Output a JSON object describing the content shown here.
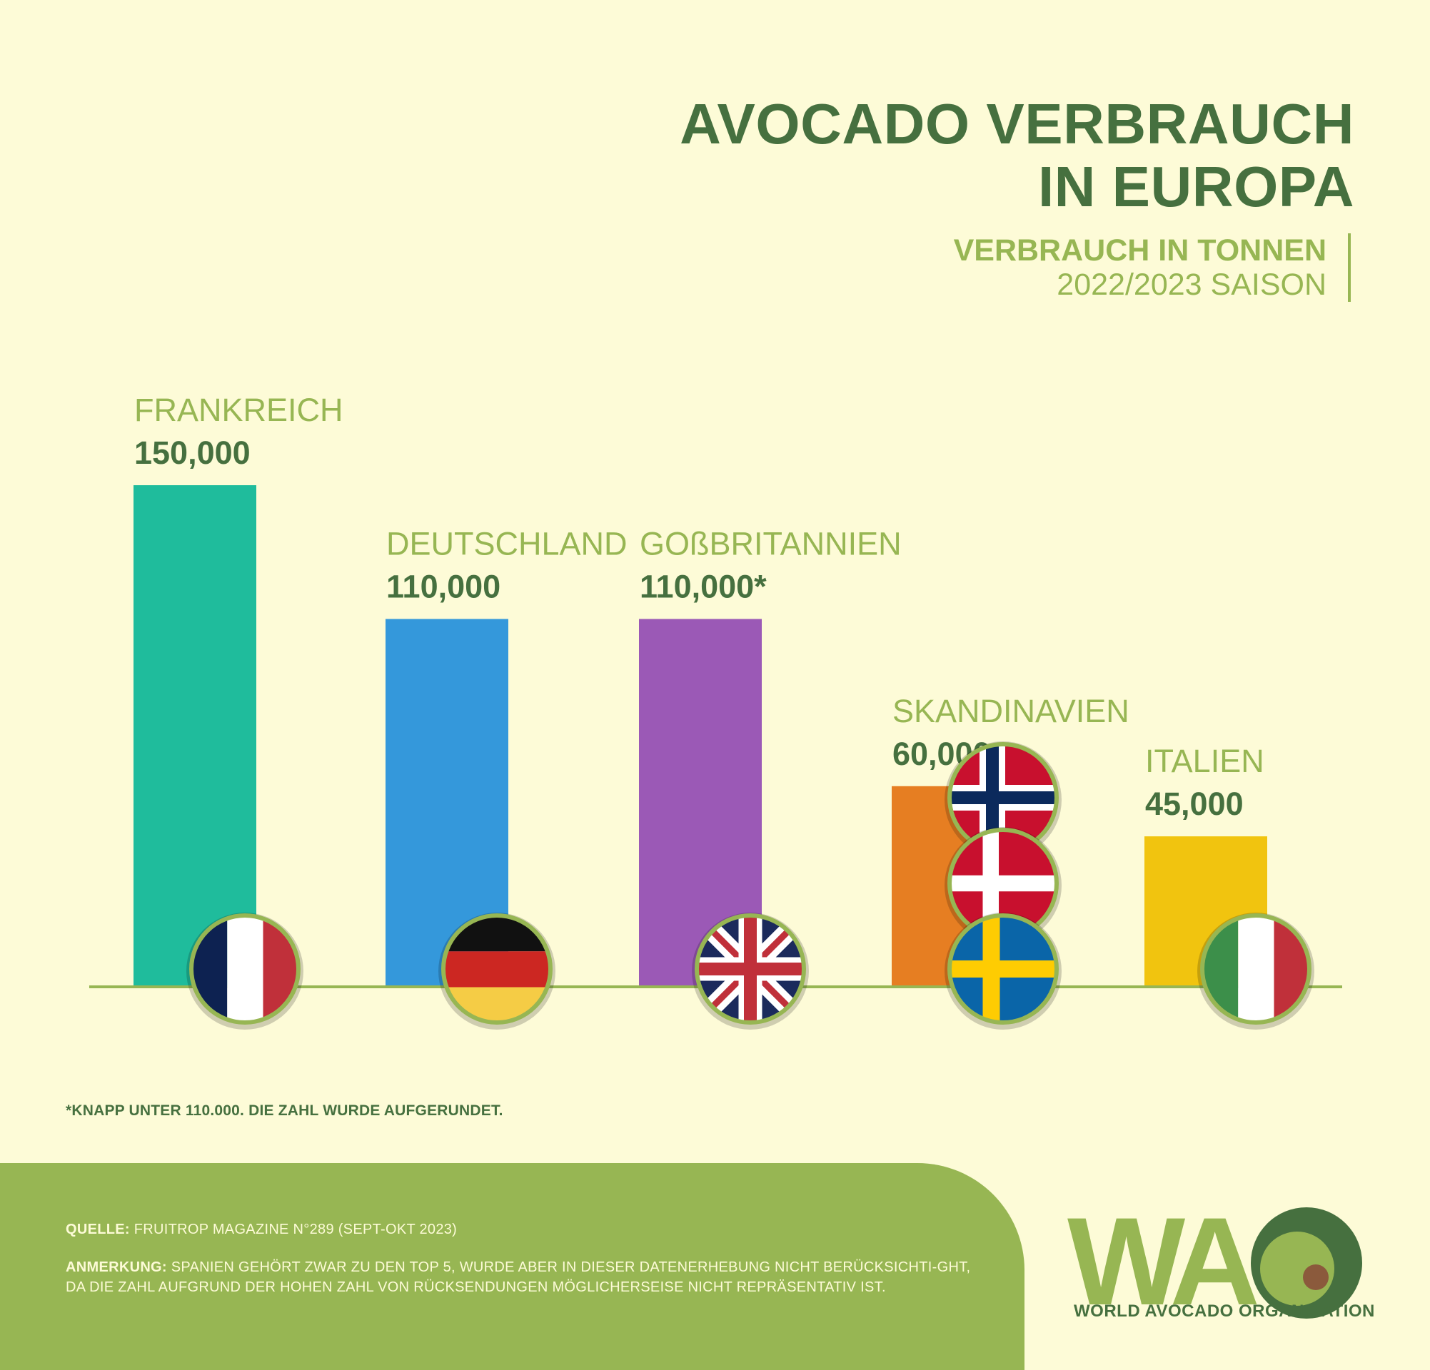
{
  "header": {
    "title_line1": "AVOCADO VERBRAUCH",
    "title_line2": "IN EUROPA",
    "unit": "VERBRAUCH IN TONNEN",
    "season": "2022/2023 SAISON"
  },
  "chart_data": {
    "type": "bar",
    "title": "AVOCADO VERBRAUCH IN EUROPA",
    "subtitle": "VERBRAUCH IN TONNEN 2022/2023 SAISON",
    "categories": [
      "FRANKREICH",
      "DEUTSCHLAND",
      "GOßBRITANNIEN",
      "SKANDINAVIEN",
      "ITALIEN"
    ],
    "values": [
      150000,
      110000,
      110000,
      60000,
      45000
    ],
    "value_labels": [
      "150,000",
      "110,000",
      "110,000*",
      "60,000",
      "45,000"
    ],
    "colors": [
      "#1fbc9c",
      "#3498db",
      "#9b59b6",
      "#e67e22",
      "#f1c40f"
    ],
    "flags": [
      [
        "france-flag"
      ],
      [
        "germany-flag"
      ],
      [
        "uk-flag"
      ],
      [
        "norway-flag",
        "denmark-flag",
        "sweden-flag"
      ],
      [
        "italy-flag"
      ]
    ],
    "ylim": [
      0,
      150000
    ],
    "grid": false,
    "legend": "none"
  },
  "footnote": "*KNAPP UNTER 110.000. DIE ZAHL WURDE AUFGERUNDET.",
  "footer": {
    "source_label": "QUELLE:",
    "source_text": " FRUITROP MAGAZINE N°289 (SEPT-OKT 2023)",
    "note_label": "ANMERKUNG:",
    "note_text": " SPANIEN GEHÖRT ZWAR ZU DEN TOP 5, WURDE ABER IN DIESER DATENERHEBUNG NICHT BERÜCKSICHTI-GHT, DA DIE ZAHL AUFGRUND DER HOHEN ZAHL VON RÜCKSENDUNGEN MÖGLICHERSEISE NICHT REPRÄSENTATIV IST.",
    "logo_text": "WAO",
    "org_name": "WORLD AVOCADO ORGANISATION"
  },
  "colors": {
    "background": "#fdfbd7",
    "dark_green": "#46703f",
    "light_green": "#97b653"
  }
}
